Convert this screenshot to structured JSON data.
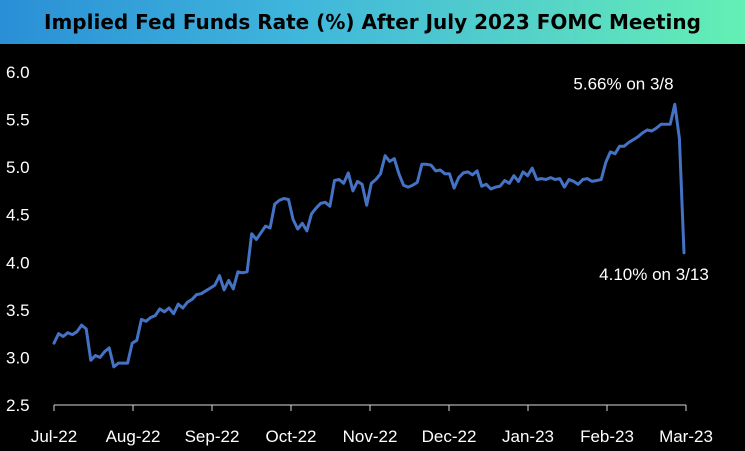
{
  "chart_data": {
    "type": "line",
    "title": "Implied Fed Funds Rate (%) After July 2023 FOMC Meeting",
    "xlabel": "",
    "ylabel": "",
    "ylim": [
      2.5,
      6.0
    ],
    "y_ticks": [
      "2.5",
      "3.0",
      "3.5",
      "4.0",
      "4.5",
      "5.0",
      "5.5",
      "6.0"
    ],
    "x_ticks": [
      "Jul-22",
      "Aug-22",
      "Sep-22",
      "Oct-22",
      "Nov-22",
      "Dec-22",
      "Jan-23",
      "Feb-23",
      "Mar-23"
    ],
    "grid": false,
    "legend": "none",
    "line_color": "#4472c4",
    "series": [
      {
        "values": [
          3.15,
          3.25,
          3.22,
          3.26,
          3.24,
          3.27,
          3.34,
          3.3,
          2.97,
          3.02,
          3.0,
          3.06,
          3.1,
          2.9,
          2.94,
          2.94,
          2.94,
          3.15,
          3.18,
          3.4,
          3.38,
          3.42,
          3.44,
          3.51,
          3.48,
          3.52,
          3.46,
          3.56,
          3.52,
          3.58,
          3.61,
          3.66,
          3.67,
          3.7,
          3.73,
          3.76,
          3.86,
          3.71,
          3.81,
          3.72,
          3.9,
          3.89,
          3.9,
          4.3,
          4.24,
          4.31,
          4.38,
          4.36,
          4.61,
          4.65,
          4.67,
          4.66,
          4.45,
          4.35,
          4.41,
          4.33,
          4.51,
          4.57,
          4.62,
          4.63,
          4.59,
          4.86,
          4.87,
          4.83,
          4.94,
          4.75,
          4.85,
          4.82,
          4.6,
          4.83,
          4.87,
          4.93,
          5.12,
          5.06,
          5.09,
          4.93,
          4.81,
          4.79,
          4.81,
          4.84,
          5.03,
          5.03,
          5.02,
          4.96,
          4.97,
          4.93,
          4.93,
          4.78,
          4.89,
          4.94,
          4.95,
          4.92,
          4.96,
          4.8,
          4.82,
          4.77,
          4.79,
          4.8,
          4.86,
          4.83,
          4.91,
          4.85,
          4.95,
          4.91,
          4.99,
          4.87,
          4.88,
          4.87,
          4.89,
          4.87,
          4.88,
          4.79,
          4.87,
          4.85,
          4.82,
          4.87,
          4.88,
          4.85,
          4.86,
          4.87,
          5.05,
          5.16,
          5.14,
          5.22,
          5.22,
          5.26,
          5.29,
          5.32,
          5.36,
          5.39,
          5.38,
          5.41,
          5.45,
          5.45,
          5.45,
          5.66,
          5.3,
          4.1
        ]
      }
    ],
    "annotations": [
      {
        "text": "5.66% on 3/8",
        "x_index": 133,
        "y": 5.66
      },
      {
        "text": "4.10% on 3/13",
        "x_index": 135,
        "y": 4.1
      }
    ]
  }
}
